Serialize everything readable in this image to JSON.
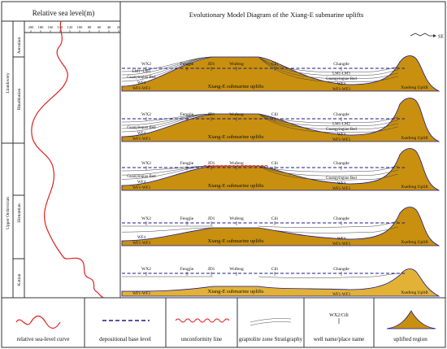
{
  "sea_level": {
    "title": "Relative sea level(m)",
    "ticks": [
      "200",
      "180",
      "160",
      "140",
      "120",
      "100",
      "80",
      "60",
      "40",
      "20"
    ]
  },
  "stages": {
    "aeronian": "Aeronian",
    "llandovery": "Llandovery",
    "rhuddanian": "Rhuddanian",
    "upper_ordovician": "Upper Ordovician",
    "hirnantian": "Hirnantian",
    "katian": "Katian"
  },
  "diagram": {
    "title": "Evolutionary Model Diagram of the Xiang-E submarine uplifts",
    "direction": "SE",
    "panels": [
      {
        "wells": [
          "WX2",
          "Fengjie",
          "JD1",
          "Wufeng",
          "Cili",
          "Changde"
        ],
        "uplift_label": "Xiang-E submarine uplifts",
        "region_label": "Xuefeng Uplift",
        "strata_left": [
          "LM1~LM3",
          "Guanyinqiao Bed",
          "WF4",
          "WF1-WF3"
        ],
        "strata_right": [
          "LM1-LM3",
          "Guangyingiao Bed",
          "WF4",
          "WF1-WF3"
        ]
      },
      {
        "wells": [
          "WX2",
          "Fengjie",
          "JD1",
          "Wufeng",
          "Cili",
          "Changde"
        ],
        "uplift_label": "Xiang-E submarine uplifts",
        "region_label": "Xuefeng Uplift",
        "strata_left": [
          "Guanyinqiao Bed",
          "WF4",
          "WF1-WF3"
        ],
        "strata_right": [
          "LM1-LM2",
          "Guangyingiao Bed",
          "WF4",
          "WF1-WF3"
        ]
      },
      {
        "wells": [
          "WX2",
          "Fengjie",
          "JD1",
          "Wufeng",
          "Cili",
          "Changde"
        ],
        "uplift_label": "Xiang-E submarine uplifts",
        "region_label": "Xuefeng Uplift",
        "strata_left": [
          "Guanyinqiao Bed",
          "WF4",
          "WF1-WF3"
        ],
        "strata_right": [
          "Guangyingiao Bed",
          "WF4",
          "WF1-WF3"
        ]
      },
      {
        "wells": [
          "WX2",
          "Fengjie",
          "JD1",
          "Wufeng",
          "Cili",
          "Changde"
        ],
        "uplift_label": "Xiang-E submarine uplifts",
        "region_label": "Xuefeng Uplift",
        "strata_left": [
          "WF4",
          "WF1-WF3"
        ],
        "strata_right": [
          "WF4",
          "WF1-WF3"
        ]
      },
      {
        "wells": [
          "WX2",
          "Fengjie",
          "JD1",
          "Wufeng",
          "Cili",
          "Changde"
        ],
        "uplift_label": "Xiang-E submarine uplifts",
        "region_label": "Xuefeng Uplift",
        "strata_left": [
          "WF1-WF3"
        ],
        "strata_right": [
          "WF1-WF3"
        ]
      }
    ]
  },
  "legend": {
    "sea_curve": "relative sea-level curve",
    "base_level": "depositional base level",
    "unconformity": "unconformity line",
    "graptolite": "graptolite zone Stratigraphy",
    "well_name": "well name/place name",
    "well_sample": "WX2/Cili",
    "uplift": "uplifted region"
  },
  "colors": {
    "uplift": "#c8900e",
    "uplift_light": "#e2b236",
    "sea_curve": "#e02020",
    "base_level": "#1a1a8a",
    "unconformity": "#e02020"
  }
}
